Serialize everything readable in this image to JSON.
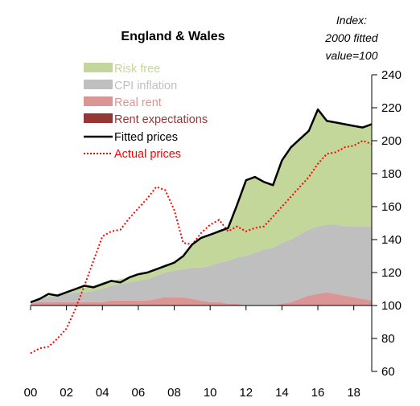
{
  "chart_data": {
    "type": "area",
    "title": "England & Wales",
    "unit_lines": [
      "Index:",
      "2000 fitted",
      "value=100"
    ],
    "x_tick_labels": [
      "00",
      "02",
      "04",
      "06",
      "08",
      "10",
      "12",
      "14",
      "16",
      "18"
    ],
    "x_tick_years": [
      2000,
      2002,
      2004,
      2006,
      2008,
      2010,
      2012,
      2014,
      2016,
      2018
    ],
    "xlim": [
      2000,
      2019
    ],
    "ylim": [
      60,
      240
    ],
    "y_ticks": [
      60,
      80,
      100,
      120,
      140,
      160,
      180,
      200,
      220,
      240
    ],
    "y_axis_side": "right",
    "baseline": 100,
    "grid": false,
    "legend_position": "top-left",
    "colors": {
      "risk_free": "#c4d79b",
      "cpi_inflation": "#bfbfbf",
      "real_rent": "#da9694",
      "rent_expectations": "#953735",
      "fitted": "#000000",
      "actual": "#ff0000"
    },
    "legend": [
      {
        "key": "risk_free",
        "label": "Risk free",
        "style": "area"
      },
      {
        "key": "cpi_inflation",
        "label": "CPI inflation",
        "style": "area"
      },
      {
        "key": "real_rent",
        "label": "Real rent",
        "style": "area"
      },
      {
        "key": "rent_expectations",
        "label": "Rent expectations",
        "style": "area"
      },
      {
        "key": "fitted",
        "label": "Fitted prices",
        "style": "line"
      },
      {
        "key": "actual",
        "label": "Actual prices",
        "style": "dotted"
      }
    ],
    "series": {
      "x": [
        2000,
        2000.5,
        2001,
        2001.5,
        2002,
        2002.5,
        2003,
        2003.5,
        2004,
        2004.5,
        2005,
        2005.5,
        2006,
        2006.5,
        2007,
        2007.5,
        2008,
        2008.5,
        2009,
        2009.5,
        2010,
        2010.5,
        2011,
        2011.5,
        2012,
        2012.5,
        2013,
        2013.5,
        2014,
        2014.5,
        2015,
        2015.5,
        2016,
        2016.5,
        2017,
        2017.5,
        2018,
        2018.5,
        2019
      ],
      "real_rent": [
        101,
        102,
        102,
        102,
        102,
        102,
        102,
        102,
        102,
        103,
        103,
        103,
        103,
        103,
        104,
        105,
        105,
        105,
        104,
        103,
        102,
        102,
        101,
        101,
        100,
        100,
        100,
        100,
        101,
        102,
        104,
        106,
        107,
        108,
        107,
        106,
        105,
        104,
        103
      ],
      "cpi_inflation": [
        1,
        2,
        3,
        4,
        5,
        6,
        6,
        7,
        8,
        9,
        10,
        11,
        12,
        13,
        14,
        15,
        16,
        17,
        19,
        20,
        22,
        24,
        26,
        28,
        30,
        32,
        34,
        35,
        37,
        38,
        39,
        40,
        41,
        41,
        42,
        42,
        43,
        44,
        45
      ],
      "risk_free": [
        0,
        0,
        1,
        1,
        1,
        2,
        3,
        3,
        4,
        3,
        3,
        3,
        4,
        4,
        4,
        5,
        5,
        8,
        14,
        18,
        19,
        20,
        20,
        33,
        46,
        46,
        41,
        38,
        50,
        56,
        58,
        60,
        71,
        63,
        62,
        62,
        61,
        60,
        62
      ],
      "fitted": [
        102,
        104,
        107,
        106,
        108,
        110,
        112,
        111,
        113,
        115,
        114,
        117,
        119,
        120,
        122,
        124,
        126,
        130,
        137,
        141,
        143,
        145,
        147,
        161,
        176,
        178,
        175,
        173,
        188,
        196,
        201,
        206,
        219,
        212,
        211,
        210,
        209,
        208,
        210
      ],
      "actual": [
        71,
        74,
        75,
        80,
        86,
        98,
        112,
        127,
        142,
        145,
        146,
        153,
        159,
        165,
        172,
        170,
        158,
        138,
        137,
        144,
        149,
        152,
        145,
        148,
        145,
        147,
        148,
        154,
        160,
        166,
        172,
        178,
        186,
        192,
        193,
        196,
        197,
        200,
        198
      ]
    }
  }
}
